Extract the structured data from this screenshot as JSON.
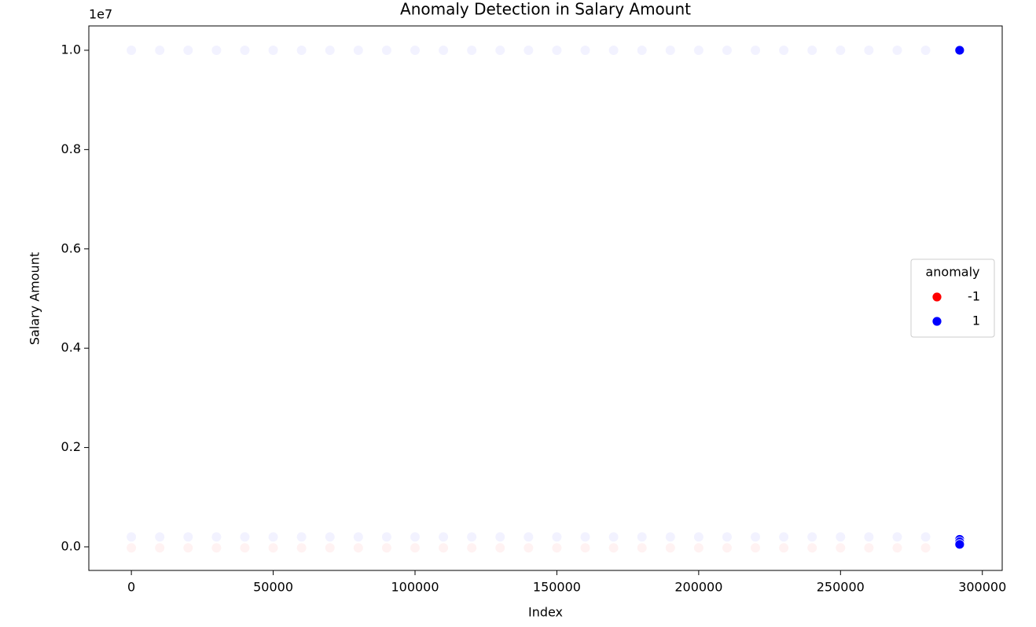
{
  "chart_data": {
    "type": "scatter",
    "title": "Anomaly Detection in Salary Amount",
    "x_label": "Index",
    "y_label": "Salary Amount",
    "y_offset_label": "1e7",
    "xlim": [
      -15000,
      307000
    ],
    "ylim": [
      -475000,
      10490000
    ],
    "xticks": [
      0,
      50000,
      100000,
      150000,
      200000,
      250000,
      300000
    ],
    "yticks": [
      {
        "value": 0,
        "label": "0.0"
      },
      {
        "value": 2000000,
        "label": "0.2"
      },
      {
        "value": 4000000,
        "label": "0.4"
      },
      {
        "value": 6000000,
        "label": "0.6"
      },
      {
        "value": 8000000,
        "label": "0.8"
      },
      {
        "value": 10000000,
        "label": "1.0"
      }
    ],
    "grid": false,
    "legend_title": "anomaly",
    "legend_position": "center right",
    "series": [
      {
        "name": "-1",
        "color": "#ff0000",
        "x": [
          0,
          10000,
          20000,
          30000,
          40000,
          50000,
          60000,
          70000,
          80000,
          90000,
          100000,
          110000,
          120000,
          130000,
          140000,
          150000,
          160000,
          170000,
          180000,
          190000,
          200000,
          210000,
          220000,
          230000,
          240000,
          250000,
          260000,
          270000,
          280000
        ],
        "values": [
          -20000,
          -20000,
          -20000,
          -20000,
          -20000,
          -20000,
          -20000,
          -20000,
          -20000,
          -20000,
          -20000,
          -20000,
          -20000,
          -20000,
          -20000,
          -20000,
          -20000,
          -20000,
          -20000,
          -20000,
          -20000,
          -20000,
          -20000,
          -20000,
          -20000,
          -20000,
          -20000,
          -20000,
          -20000
        ],
        "alpha": [
          0.05,
          0.05,
          0.05,
          0.05,
          0.05,
          0.05,
          0.05,
          0.05,
          0.05,
          0.05,
          0.05,
          0.05,
          0.05,
          0.05,
          0.05,
          0.05,
          0.05,
          0.05,
          0.05,
          0.05,
          0.05,
          0.05,
          0.05,
          0.05,
          0.05,
          0.05,
          0.05,
          0.05,
          0.05
        ]
      },
      {
        "name": "1",
        "color": "#0000ff",
        "x": [
          0,
          10000,
          20000,
          30000,
          40000,
          50000,
          60000,
          70000,
          80000,
          90000,
          100000,
          110000,
          120000,
          130000,
          140000,
          150000,
          160000,
          170000,
          180000,
          190000,
          200000,
          210000,
          220000,
          230000,
          240000,
          250000,
          260000,
          270000,
          280000,
          0,
          10000,
          20000,
          30000,
          40000,
          50000,
          60000,
          70000,
          80000,
          90000,
          100000,
          110000,
          120000,
          130000,
          140000,
          150000,
          160000,
          170000,
          180000,
          190000,
          200000,
          210000,
          220000,
          230000,
          240000,
          250000,
          260000,
          270000,
          280000,
          292000,
          292000,
          292000,
          292000
        ],
        "values": [
          10000000,
          10000000,
          10000000,
          10000000,
          10000000,
          10000000,
          10000000,
          10000000,
          10000000,
          10000000,
          10000000,
          10000000,
          10000000,
          10000000,
          10000000,
          10000000,
          10000000,
          10000000,
          10000000,
          10000000,
          10000000,
          10000000,
          10000000,
          10000000,
          10000000,
          10000000,
          10000000,
          10000000,
          10000000,
          200000,
          200000,
          200000,
          200000,
          200000,
          200000,
          200000,
          200000,
          200000,
          200000,
          200000,
          200000,
          200000,
          200000,
          200000,
          200000,
          200000,
          200000,
          200000,
          200000,
          200000,
          200000,
          200000,
          200000,
          200000,
          200000,
          200000,
          200000,
          200000,
          10000000,
          150000,
          100000,
          50000
        ],
        "alpha": [
          0.05,
          0.05,
          0.05,
          0.05,
          0.05,
          0.05,
          0.05,
          0.05,
          0.05,
          0.05,
          0.05,
          0.05,
          0.05,
          0.05,
          0.05,
          0.05,
          0.05,
          0.05,
          0.05,
          0.05,
          0.05,
          0.05,
          0.05,
          0.05,
          0.05,
          0.05,
          0.05,
          0.05,
          0.05,
          0.05,
          0.05,
          0.05,
          0.05,
          0.05,
          0.05,
          0.05,
          0.05,
          0.05,
          0.05,
          0.05,
          0.05,
          0.05,
          0.05,
          0.05,
          0.05,
          0.05,
          0.05,
          0.05,
          0.05,
          0.05,
          0.05,
          0.05,
          0.05,
          0.05,
          0.05,
          0.05,
          0.05,
          0.05,
          1,
          1,
          1,
          1
        ]
      }
    ]
  }
}
